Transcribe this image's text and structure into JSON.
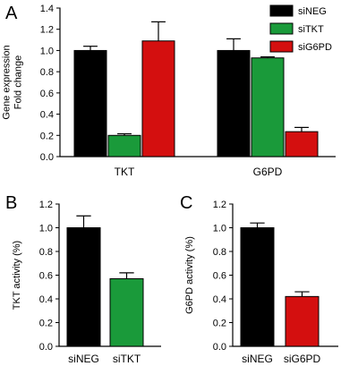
{
  "chart_data": [
    {
      "panel": "A",
      "type": "bar",
      "categories": [
        "TKT",
        "G6PD"
      ],
      "ylabel": [
        "Gene expression",
        "Fold change"
      ],
      "ylim": [
        0,
        1.4
      ],
      "yticks": [
        "0.0",
        "0.2",
        "0.4",
        "0.6",
        "0.8",
        "1.0",
        "1.2",
        "1.4"
      ],
      "legend": "right",
      "series": [
        {
          "name": "siNEG",
          "color": "#000000",
          "values": [
            1.0,
            1.0
          ],
          "errors": [
            0.04,
            0.11
          ]
        },
        {
          "name": "siTKT",
          "color": "#1a9a3a",
          "values": [
            0.2,
            0.93
          ],
          "errors": [
            0.015,
            0.01
          ]
        },
        {
          "name": "siG6PD",
          "color": "#d40f0f",
          "values": [
            1.09,
            0.235
          ],
          "errors": [
            0.18,
            0.04
          ]
        }
      ]
    },
    {
      "panel": "B",
      "type": "bar",
      "categories": [
        "siNEG",
        "siTKT"
      ],
      "ylabel": [
        "TKT activity  (%)"
      ],
      "ylim": [
        0,
        1.2
      ],
      "yticks": [
        "0.0",
        "0.2",
        "0.4",
        "0.6",
        "0.8",
        "1.0",
        "1.2"
      ],
      "values": [
        1.0,
        0.57
      ],
      "errors": [
        0.1,
        0.05
      ],
      "colors": [
        "#000000",
        "#1a9a3a"
      ]
    },
    {
      "panel": "C",
      "type": "bar",
      "categories": [
        "siNEG",
        "siG6PD"
      ],
      "ylabel": [
        "G6PD activity  (%)"
      ],
      "ylim": [
        0,
        1.2
      ],
      "yticks": [
        "0.0",
        "0.2",
        "0.4",
        "0.6",
        "0.8",
        "1.0",
        "1.2"
      ],
      "values": [
        1.0,
        0.42
      ],
      "errors": [
        0.04,
        0.04
      ],
      "colors": [
        "#000000",
        "#d40f0f"
      ]
    }
  ]
}
